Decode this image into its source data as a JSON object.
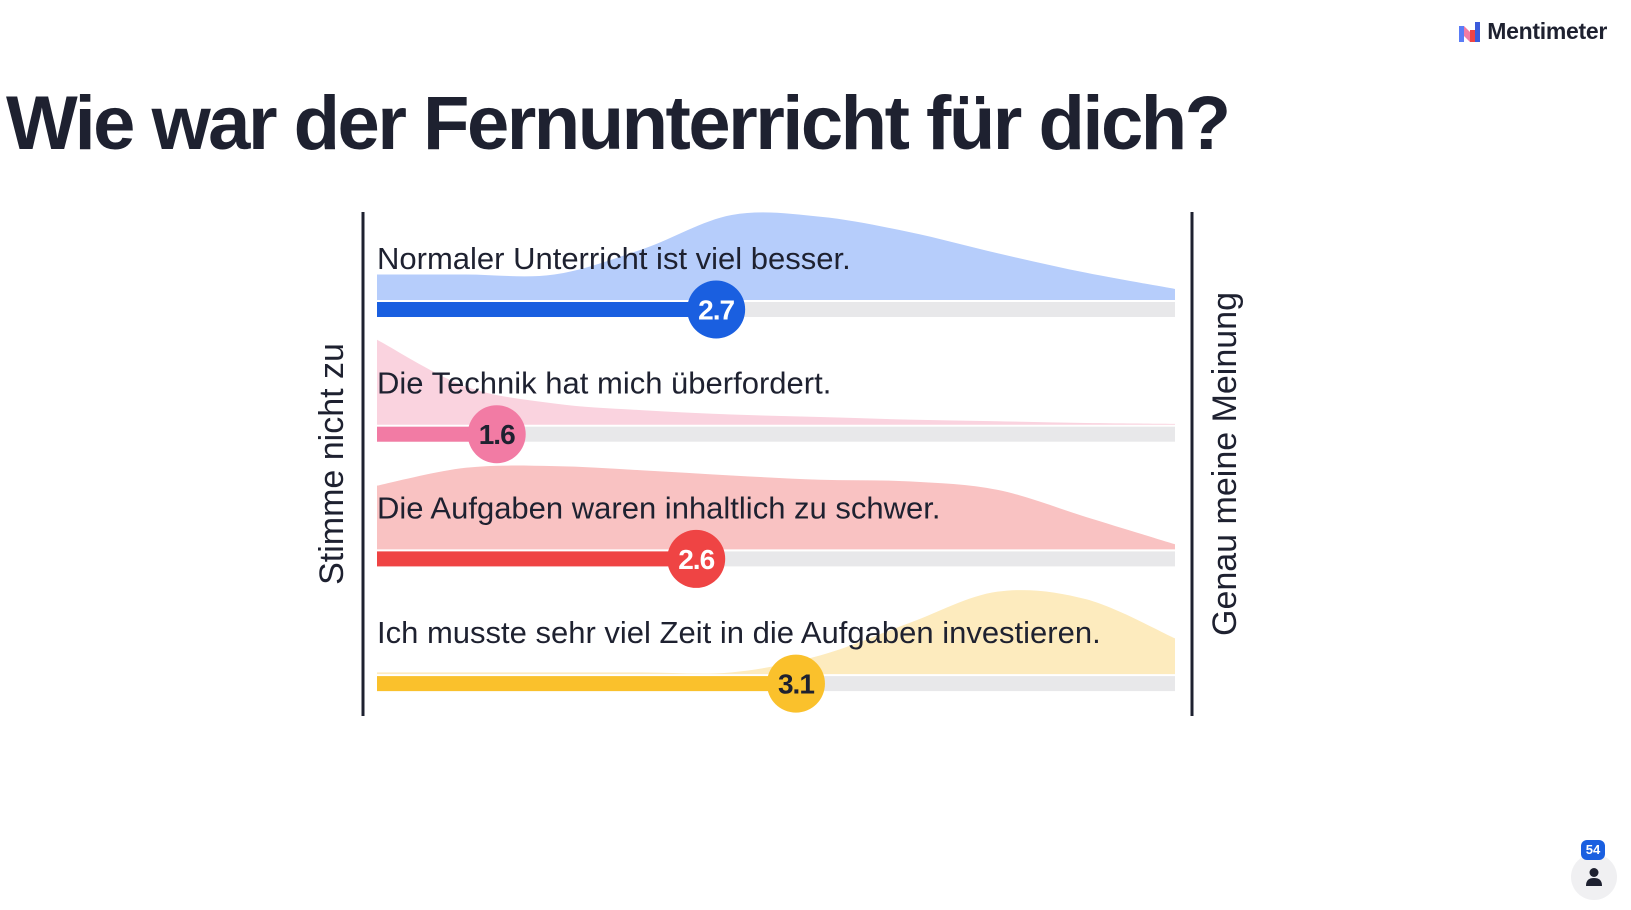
{
  "header": {
    "brand": "Mentimeter",
    "logo_icon": "mentimeter-logo-icon"
  },
  "question": {
    "title": "Wie war der Fernunterricht für dich?"
  },
  "chart_data": {
    "type": "scale",
    "title": "Wie war der Fernunterricht für dich?",
    "scale_min": 1,
    "scale_max": 5,
    "left_label": "Stimme nicht zu",
    "right_label": "Genau meine Meinung",
    "statements": [
      {
        "label": "Normaler Unterricht ist viel besser.",
        "value": 2.7,
        "value_label": "2.7",
        "color": "#1a5fe0",
        "light_color": "#b6cdfb",
        "value_text_color": "#ffffff",
        "distribution": [
          0.3,
          0.3,
          0.3,
          0.6,
          1.0,
          0.98,
          0.8,
          0.55,
          0.32,
          0.13
        ]
      },
      {
        "label": "Die Technik hat mich überfordert.",
        "value": 1.6,
        "value_label": "1.6",
        "color": "#f27ba4",
        "light_color": "#fad3df",
        "value_text_color": "#1e2130",
        "distribution": [
          1.0,
          0.45,
          0.25,
          0.17,
          0.12,
          0.09,
          0.06,
          0.04,
          0.02,
          0.01
        ]
      },
      {
        "label": "Die Aufgaben waren inhaltlich zu schwer.",
        "value": 2.6,
        "value_label": "2.6",
        "color": "#ef4444",
        "light_color": "#f9c2c2",
        "value_text_color": "#ffffff",
        "distribution": [
          0.75,
          0.96,
          0.98,
          0.93,
          0.87,
          0.82,
          0.8,
          0.7,
          0.38,
          0.06
        ]
      },
      {
        "label": "Ich musste sehr viel Zeit in die Aufgaben investieren.",
        "value": 3.1,
        "value_label": "3.1",
        "color": "#fac12c",
        "light_color": "#fdebbe",
        "value_text_color": "#1e2130",
        "distribution": [
          0.02,
          0.02,
          0.02,
          0.02,
          0.02,
          0.22,
          0.6,
          0.97,
          0.88,
          0.42
        ]
      }
    ]
  },
  "footer": {
    "participant_count": "54",
    "participants_icon": "person-icon"
  }
}
